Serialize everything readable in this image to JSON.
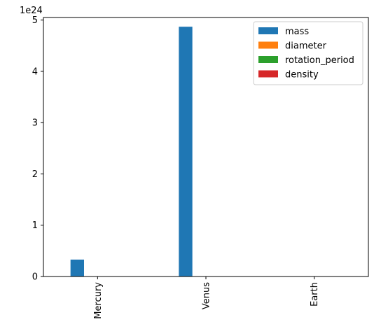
{
  "chart_data": {
    "type": "bar",
    "title": "",
    "xlabel": "",
    "ylabel": "",
    "scale_label": "1e24",
    "categories": [
      "Mercury",
      "Venus",
      "Earth"
    ],
    "ylim": [
      0,
      5.05
    ],
    "yticks": [
      0,
      1,
      2,
      3,
      4,
      5
    ],
    "yticklabels": [
      "0",
      "1",
      "2",
      "3",
      "4",
      "5"
    ],
    "legend_position": "top-right",
    "grid": false,
    "series": [
      {
        "name": "mass",
        "color": "#1f77b4",
        "values": [
          0.33,
          4.87,
          0
        ]
      },
      {
        "name": "diameter",
        "color": "#ff7f0e",
        "values": [
          0,
          0,
          0
        ]
      },
      {
        "name": "rotation_period",
        "color": "#2ca02c",
        "values": [
          0,
          0,
          0
        ]
      },
      {
        "name": "density",
        "color": "#d62728",
        "values": [
          0,
          0,
          0
        ]
      }
    ]
  }
}
